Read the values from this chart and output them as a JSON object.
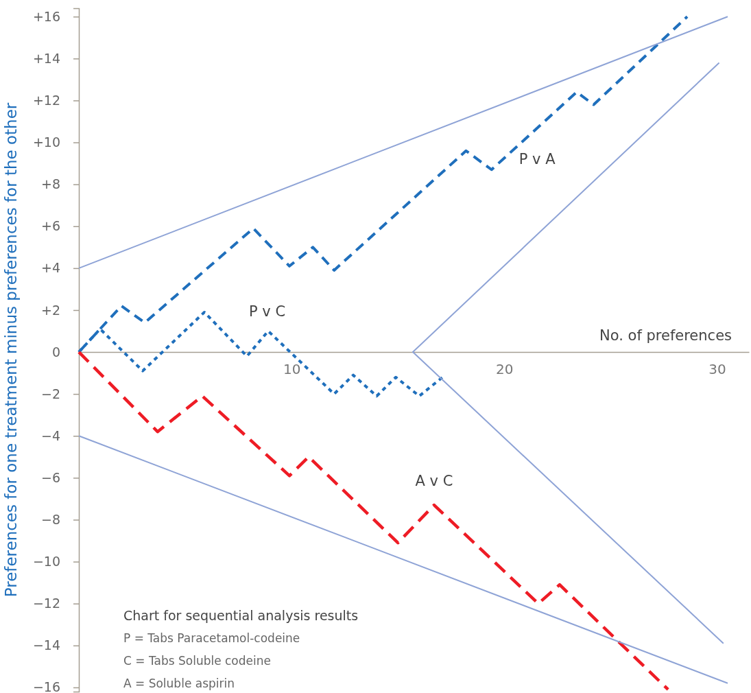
{
  "chart_data": {
    "type": "line",
    "title": "Chart for sequential analysis results",
    "xlabel": "No. of preferences",
    "ylabel": "Preferences for one treatment minus preferences for the other",
    "annotations": [
      "P = Tabs Paracetamol-codeine",
      "C = Tabs Soluble codeine",
      "A = Soluble aspirin"
    ],
    "xlim": [
      0,
      31.5
    ],
    "xticks": [
      10,
      20,
      30
    ],
    "ylim": [
      -16.2,
      16.4
    ],
    "yticks": [
      {
        "value": 16,
        "label": "+16"
      },
      {
        "value": 14,
        "label": "+14"
      },
      {
        "value": 12,
        "label": "+12"
      },
      {
        "value": 10,
        "label": "+10"
      },
      {
        "value": 8,
        "label": "+8"
      },
      {
        "value": 6,
        "label": "+6"
      },
      {
        "value": 4,
        "label": "+4"
      },
      {
        "value": 2,
        "label": "+2"
      },
      0,
      {
        "value": -2,
        "label": "−2"
      },
      {
        "value": -4,
        "label": "−4"
      },
      {
        "value": -6,
        "label": "−6"
      },
      {
        "value": -8,
        "label": "−8"
      },
      {
        "value": -10,
        "label": "−10"
      },
      {
        "value": -12,
        "label": "−12"
      },
      {
        "value": -14,
        "label": "−14"
      },
      {
        "value": -16,
        "label": "−16"
      }
    ],
    "grid": false,
    "marker": "none",
    "series": [
      {
        "name": "P v A",
        "color": "#1f6fbc",
        "line_style": "dashed",
        "x": [
          0,
          2,
          3.1,
          8.2,
          9.9,
          11,
          12,
          18.2,
          19.4,
          23.4,
          24.2,
          28.6
        ],
        "values": [
          0,
          2.2,
          1.4,
          5.9,
          4.1,
          5,
          3.9,
          9.6,
          8.7,
          12.4,
          11.8,
          16
        ]
      },
      {
        "name": "P v C",
        "color": "#1f6fbc",
        "line_style": "dotted",
        "x": [
          0,
          1,
          3,
          5.9,
          7.9,
          8.9,
          12,
          12.9,
          14,
          14.9,
          16,
          17.1
        ],
        "values": [
          0,
          1.1,
          -0.9,
          1.9,
          -0.2,
          1,
          -2,
          -1.1,
          -2.1,
          -1.2,
          -2.1,
          -1.2
        ]
      },
      {
        "name": "A v C",
        "color": "#ee1c25",
        "line_style": "dashed",
        "x": [
          0,
          3.7,
          5.8,
          9.9,
          10.8,
          15,
          16.7,
          21.6,
          22.6,
          27.7
        ],
        "values": [
          0,
          -3.8,
          -2.1,
          -5.9,
          -5,
          -9.1,
          -7.3,
          -12,
          -11.1,
          -16.1
        ]
      },
      {
        "color": "#8ea3d6",
        "line_style": "solid",
        "x": [
          0,
          30.5
        ],
        "values": [
          4,
          16
        ]
      },
      {
        "color": "#8ea3d6",
        "line_style": "solid",
        "x": [
          0,
          30.5
        ],
        "values": [
          -4,
          -15.8
        ]
      },
      {
        "color": "#8ea3d6",
        "line_style": "solid",
        "x": [
          30.1,
          15.7,
          30.3
        ],
        "values": [
          13.8,
          0,
          -13.9
        ]
      }
    ]
  }
}
